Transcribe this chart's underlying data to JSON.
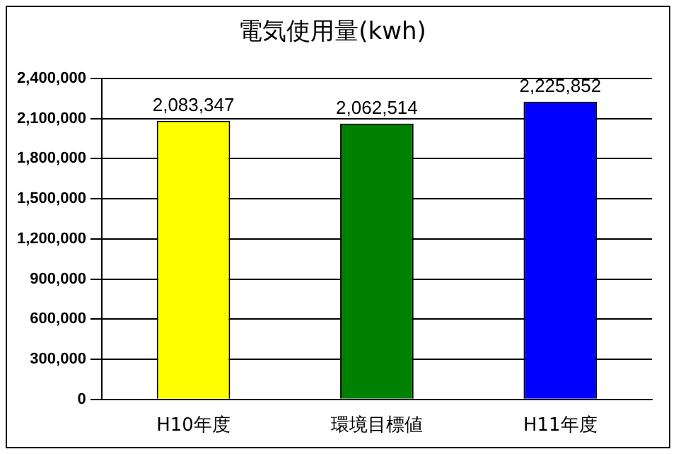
{
  "chart_data": {
    "type": "bar",
    "title": "電気使用量(kwh)",
    "categories": [
      "H10年度",
      "環境目標値",
      "H11年度"
    ],
    "values": [
      2083347,
      2062514,
      2225852
    ],
    "value_labels": [
      "2,083,347",
      "2,062,514",
      "2,225,852"
    ],
    "colors": [
      "#ffff00",
      "#008000",
      "#0000ff"
    ],
    "ylim": [
      0,
      2400000
    ],
    "yticks": [
      0,
      {
        "value": 300000,
        "label": "300,000"
      },
      {
        "value": 600000,
        "label": "600,000"
      },
      {
        "value": 900000,
        "label": "900,000"
      },
      {
        "value": 1200000,
        "label": "1,200,000"
      },
      {
        "value": 1500000,
        "label": "1,500,000"
      },
      {
        "value": 1800000,
        "label": "1,800,000"
      },
      {
        "value": 2100000,
        "label": "2,100,000"
      },
      {
        "value": 2400000,
        "label": "2,400,000"
      }
    ],
    "grid": "y",
    "legend": false
  }
}
